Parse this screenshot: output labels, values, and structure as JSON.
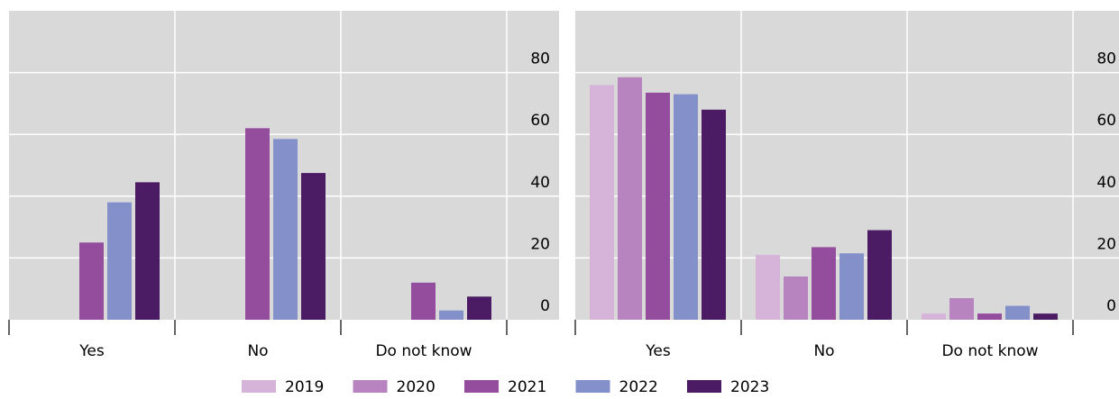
{
  "legend": [
    {
      "name": "2019",
      "color": "#d6b3d9"
    },
    {
      "name": "2020",
      "color": "#b784c0"
    },
    {
      "name": "2021",
      "color": "#944d9c"
    },
    {
      "name": "2022",
      "color": "#8390c9"
    },
    {
      "name": "2023",
      "color": "#4b1c63"
    }
  ],
  "chart_data": [
    {
      "type": "bar",
      "categories": [
        "Yes",
        "No",
        "Do not know"
      ],
      "series": [
        {
          "values": [
            null,
            null,
            null
          ]
        },
        {
          "values": [
            null,
            null,
            null
          ]
        },
        {
          "values": [
            25,
            62,
            12
          ]
        },
        {
          "values": [
            38,
            58.5,
            3
          ]
        },
        {
          "values": [
            44.5,
            47.5,
            7.5
          ]
        }
      ],
      "ylim": [
        0,
        100
      ],
      "yticks": [
        0,
        20,
        40,
        60,
        80
      ],
      "grid": true
    },
    {
      "type": "bar",
      "categories": [
        "Yes",
        "No",
        "Do not know"
      ],
      "series": [
        {
          "values": [
            76,
            21,
            2
          ]
        },
        {
          "values": [
            78.5,
            14,
            7
          ]
        },
        {
          "values": [
            73.5,
            23.5,
            2
          ]
        },
        {
          "values": [
            73,
            21.5,
            4.5
          ]
        },
        {
          "values": [
            68,
            29,
            2
          ]
        }
      ],
      "ylim": [
        0,
        100
      ],
      "yticks": [
        0,
        20,
        40,
        60,
        80
      ],
      "grid": true
    }
  ]
}
